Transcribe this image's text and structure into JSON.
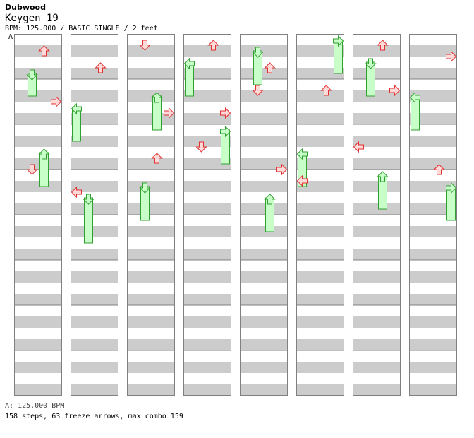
{
  "header": {
    "artist": "Dubwood",
    "title": "Keygen 19",
    "info": "BPM: 125.000 / BASIC SINGLE / 2 feet",
    "bpm_marker": "A"
  },
  "footer": {
    "bpm_line": "A: 125.000 BPM",
    "stats_line": "158 steps, 63 freeze arrows, max combo 159"
  },
  "colors": {
    "stripe": "#cccccc",
    "column_bg": "#ffffff",
    "border": "#808080",
    "tap_fill": "#ffd8d8",
    "tap_stroke": "#e03030",
    "freeze_fill": "#c8ffc8",
    "freeze_stroke": "#30a030"
  },
  "chart_data": {
    "type": "table",
    "measures_per_column": 8,
    "lanes": [
      "left",
      "down",
      "up",
      "right"
    ],
    "steps": [
      [
        0,
        3,
        2
      ],
      [
        0,
        12,
        3
      ],
      [
        0,
        24,
        1
      ],
      [
        1,
        6,
        2
      ],
      [
        1,
        28,
        0
      ],
      [
        2,
        2,
        1
      ],
      [
        2,
        14,
        3
      ],
      [
        2,
        22,
        2
      ],
      [
        3,
        2,
        2
      ],
      [
        3,
        14,
        3
      ],
      [
        3,
        20,
        1
      ],
      [
        4,
        6,
        2
      ],
      [
        4,
        10,
        1
      ],
      [
        4,
        24,
        3
      ],
      [
        5,
        10,
        2
      ],
      [
        5,
        26,
        0
      ],
      [
        6,
        2,
        2
      ],
      [
        6,
        10,
        3
      ],
      [
        6,
        20,
        0
      ],
      [
        7,
        4,
        3
      ],
      [
        7,
        24,
        2
      ]
    ],
    "freezes": [
      [
        0,
        8,
        12,
        1
      ],
      [
        0,
        22,
        28,
        2
      ],
      [
        1,
        14,
        20,
        0
      ],
      [
        1,
        30,
        38,
        1
      ],
      [
        2,
        12,
        18,
        2
      ],
      [
        2,
        28,
        34,
        1
      ],
      [
        3,
        6,
        12,
        0
      ],
      [
        3,
        18,
        24,
        3
      ],
      [
        4,
        4,
        10,
        1
      ],
      [
        4,
        30,
        36,
        2
      ],
      [
        5,
        2,
        8,
        3
      ],
      [
        5,
        22,
        28,
        0
      ],
      [
        6,
        6,
        12,
        1
      ],
      [
        6,
        26,
        32,
        2
      ],
      [
        7,
        12,
        18,
        0
      ],
      [
        7,
        28,
        34,
        3
      ]
    ]
  }
}
